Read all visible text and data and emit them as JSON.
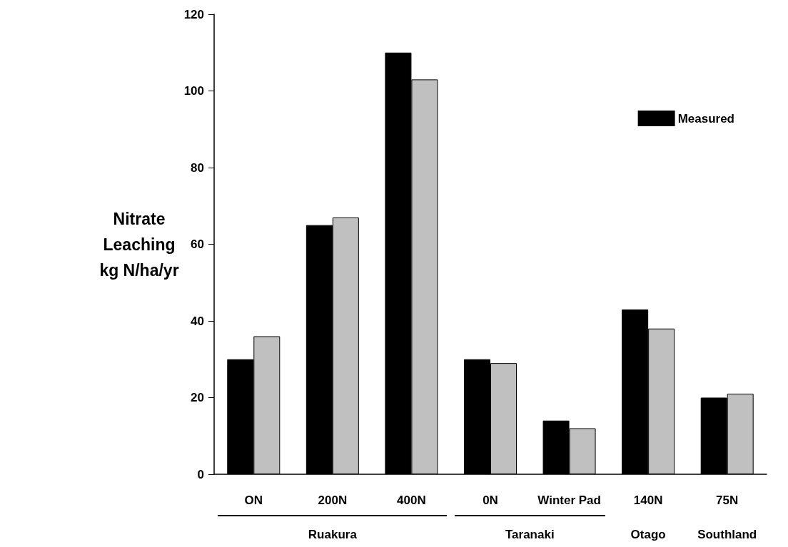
{
  "chart_data": {
    "type": "bar",
    "ylabel": "Nitrate\nLeaching\nkg N/ha/yr",
    "categories": [
      "ON",
      "200N",
      "400N",
      "0N",
      "Winter Pad",
      "140N",
      "75N"
    ],
    "series": [
      {
        "name": "Measured",
        "color": "#000000",
        "values": [
          30,
          65,
          110,
          30,
          14,
          43,
          20
        ]
      },
      {
        "color": "#c0c0c0",
        "values": [
          36,
          67,
          103,
          29,
          12,
          38,
          21
        ]
      }
    ],
    "ylim": [
      0,
      120
    ],
    "yticks": [
      0,
      20,
      40,
      60,
      80,
      100,
      120
    ],
    "grid": false,
    "legend": "top right",
    "annotations": [
      "Ruakura",
      "Taranaki",
      "Otago",
      "Southland"
    ]
  }
}
